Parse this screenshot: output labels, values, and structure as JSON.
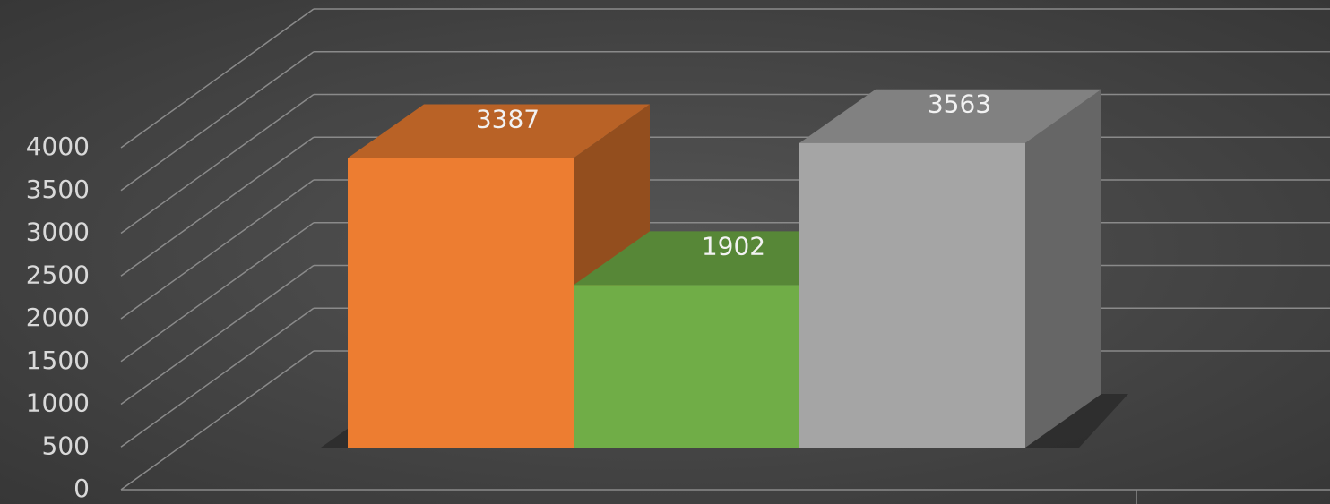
{
  "chart_data": {
    "type": "bar3d",
    "categories": [
      null,
      null,
      null
    ],
    "values": [
      3387,
      1902,
      3563
    ],
    "colors": [
      "#ed7d31",
      "#70ad47",
      "#a5a5a5"
    ],
    "ylim": [
      0,
      4000
    ],
    "yticks": [
      0,
      500,
      1000,
      1500,
      2000,
      2500,
      3000,
      3500,
      4000
    ],
    "grid": true
  }
}
